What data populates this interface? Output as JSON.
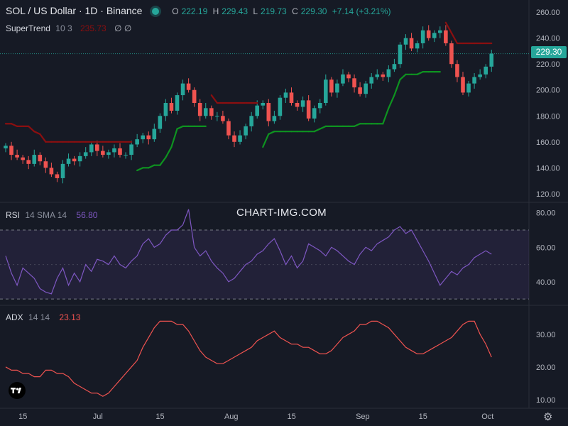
{
  "header": {
    "symbol": "SOL / US Dollar · 1D · Binance",
    "open_label": "O",
    "open": "222.19",
    "high_label": "H",
    "high": "229.43",
    "low_label": "L",
    "low": "219.73",
    "close_label": "C",
    "close": "229.30",
    "change": "+7.14 (+3.21%)"
  },
  "supertrend": {
    "name": "SuperTrend",
    "params": "10 3",
    "value": "235.73",
    "icons": "∅ ∅"
  },
  "rsi": {
    "name": "RSI",
    "params": "14 SMA 14",
    "value": "56.80"
  },
  "adx": {
    "name": "ADX",
    "params": "14 14",
    "value": "23.13"
  },
  "watermark": "CHART-IMG.COM",
  "last_price": "229.30",
  "colors": {
    "up": "#26a69a",
    "down": "#ef5350",
    "bg": "#161a25",
    "st_up": "#0e9320",
    "st_down": "#8b0f10",
    "rsi": "#7e57c2",
    "adx": "#ef5350"
  },
  "chart_data": [
    {
      "type": "candlestick",
      "title": "SOL / US Dollar · 1D · Binance",
      "price_ticks": [
        "120.00",
        "140.00",
        "160.00",
        "180.00",
        "200.00",
        "220.00",
        "240.00",
        "260.00"
      ],
      "ylim": [
        115,
        265
      ],
      "x_ticks": [
        "15",
        "Jul",
        "15",
        "Aug",
        "15",
        "Sep",
        "15",
        "Oct"
      ],
      "closes": [
        157,
        150,
        148,
        146,
        143,
        150,
        145,
        140,
        135,
        132,
        143,
        147,
        145,
        149,
        152,
        158,
        153,
        150,
        152,
        155,
        150,
        150,
        158,
        162,
        165,
        162,
        170,
        180,
        190,
        184,
        196,
        205,
        200,
        190,
        180,
        186,
        180,
        180,
        176,
        165,
        160,
        165,
        172,
        180,
        188,
        190,
        176,
        180,
        194,
        198,
        190,
        187,
        192,
        178,
        186,
        190,
        208,
        198,
        205,
        212,
        209,
        202,
        197,
        205,
        210,
        212,
        210,
        216,
        220,
        235,
        240,
        232,
        236,
        246,
        240,
        244,
        246,
        236,
        220,
        210,
        198,
        205,
        210,
        212,
        218,
        228
      ],
      "supertrend": [
        174,
        174,
        172,
        172,
        172,
        168,
        166,
        160,
        160,
        160,
        160,
        160,
        160,
        160,
        160,
        160,
        160,
        160,
        160,
        160,
        160,
        160,
        160,
        138,
        140,
        140,
        142,
        142,
        148,
        156,
        170,
        172,
        172,
        172,
        172,
        172,
        196,
        190,
        190,
        190,
        190,
        190,
        190,
        190,
        190,
        156,
        166,
        168,
        168,
        168,
        168,
        168,
        168,
        168,
        168,
        170,
        172,
        172,
        172,
        172,
        172,
        172,
        174,
        174,
        174,
        174,
        174,
        186,
        196,
        208,
        212,
        212,
        212,
        214,
        214,
        214,
        214,
        252,
        244,
        236,
        236,
        236,
        236,
        236,
        236,
        236
      ],
      "supertrend_up": [
        false,
        false,
        false,
        false,
        false,
        false,
        false,
        false,
        false,
        false,
        false,
        false,
        false,
        false,
        false,
        false,
        false,
        false,
        false,
        false,
        false,
        false,
        false,
        true,
        true,
        true,
        true,
        true,
        true,
        true,
        true,
        true,
        true,
        true,
        true,
        true,
        false,
        false,
        false,
        false,
        false,
        false,
        false,
        false,
        false,
        true,
        true,
        true,
        true,
        true,
        true,
        true,
        true,
        true,
        true,
        true,
        true,
        true,
        true,
        true,
        true,
        true,
        true,
        true,
        true,
        true,
        true,
        true,
        true,
        true,
        true,
        true,
        true,
        true,
        true,
        true,
        true,
        false,
        false,
        false,
        false,
        false,
        false,
        false,
        false,
        false
      ]
    },
    {
      "type": "line",
      "title": "RSI 14 SMA 14",
      "y_ticks": [
        "40.00",
        "60.00",
        "80.00"
      ],
      "ylim": [
        28,
        84
      ],
      "bands": [
        30,
        70
      ],
      "values": [
        55,
        45,
        38,
        48,
        45,
        42,
        36,
        34,
        33,
        42,
        48,
        38,
        45,
        40,
        50,
        46,
        53,
        52,
        50,
        55,
        50,
        48,
        52,
        55,
        62,
        65,
        60,
        62,
        67,
        70,
        70,
        73,
        82,
        60,
        55,
        58,
        52,
        48,
        45,
        40,
        42,
        46,
        50,
        52,
        56,
        58,
        62,
        65,
        58,
        50,
        55,
        48,
        52,
        62,
        60,
        58,
        55,
        60,
        58,
        55,
        52,
        50,
        56,
        60,
        58,
        62,
        64,
        66,
        70,
        72,
        68,
        70,
        64,
        58,
        52,
        45,
        38,
        42,
        46,
        44,
        48,
        50,
        54,
        56,
        58,
        56
      ]
    },
    {
      "type": "line",
      "title": "ADX 14 14",
      "y_ticks": [
        "10.00",
        "20.00",
        "30.00"
      ],
      "ylim": [
        8,
        38
      ],
      "values": [
        20,
        19,
        19,
        18,
        18,
        17,
        17,
        19,
        19,
        18,
        18,
        17,
        15,
        14,
        13,
        12,
        12,
        11,
        12,
        14,
        16,
        18,
        20,
        22,
        26,
        29,
        32,
        34,
        34,
        34,
        33,
        33,
        31,
        28,
        25,
        23,
        22,
        21,
        21,
        22,
        23,
        24,
        25,
        26,
        28,
        29,
        30,
        31,
        29,
        28,
        27,
        27,
        26,
        26,
        25,
        24,
        24,
        25,
        27,
        29,
        30,
        31,
        33,
        33,
        34,
        34,
        33,
        32,
        30,
        28,
        26,
        25,
        24,
        24,
        25,
        26,
        27,
        28,
        29,
        31,
        33,
        34,
        34,
        30,
        27,
        23
      ]
    }
  ]
}
